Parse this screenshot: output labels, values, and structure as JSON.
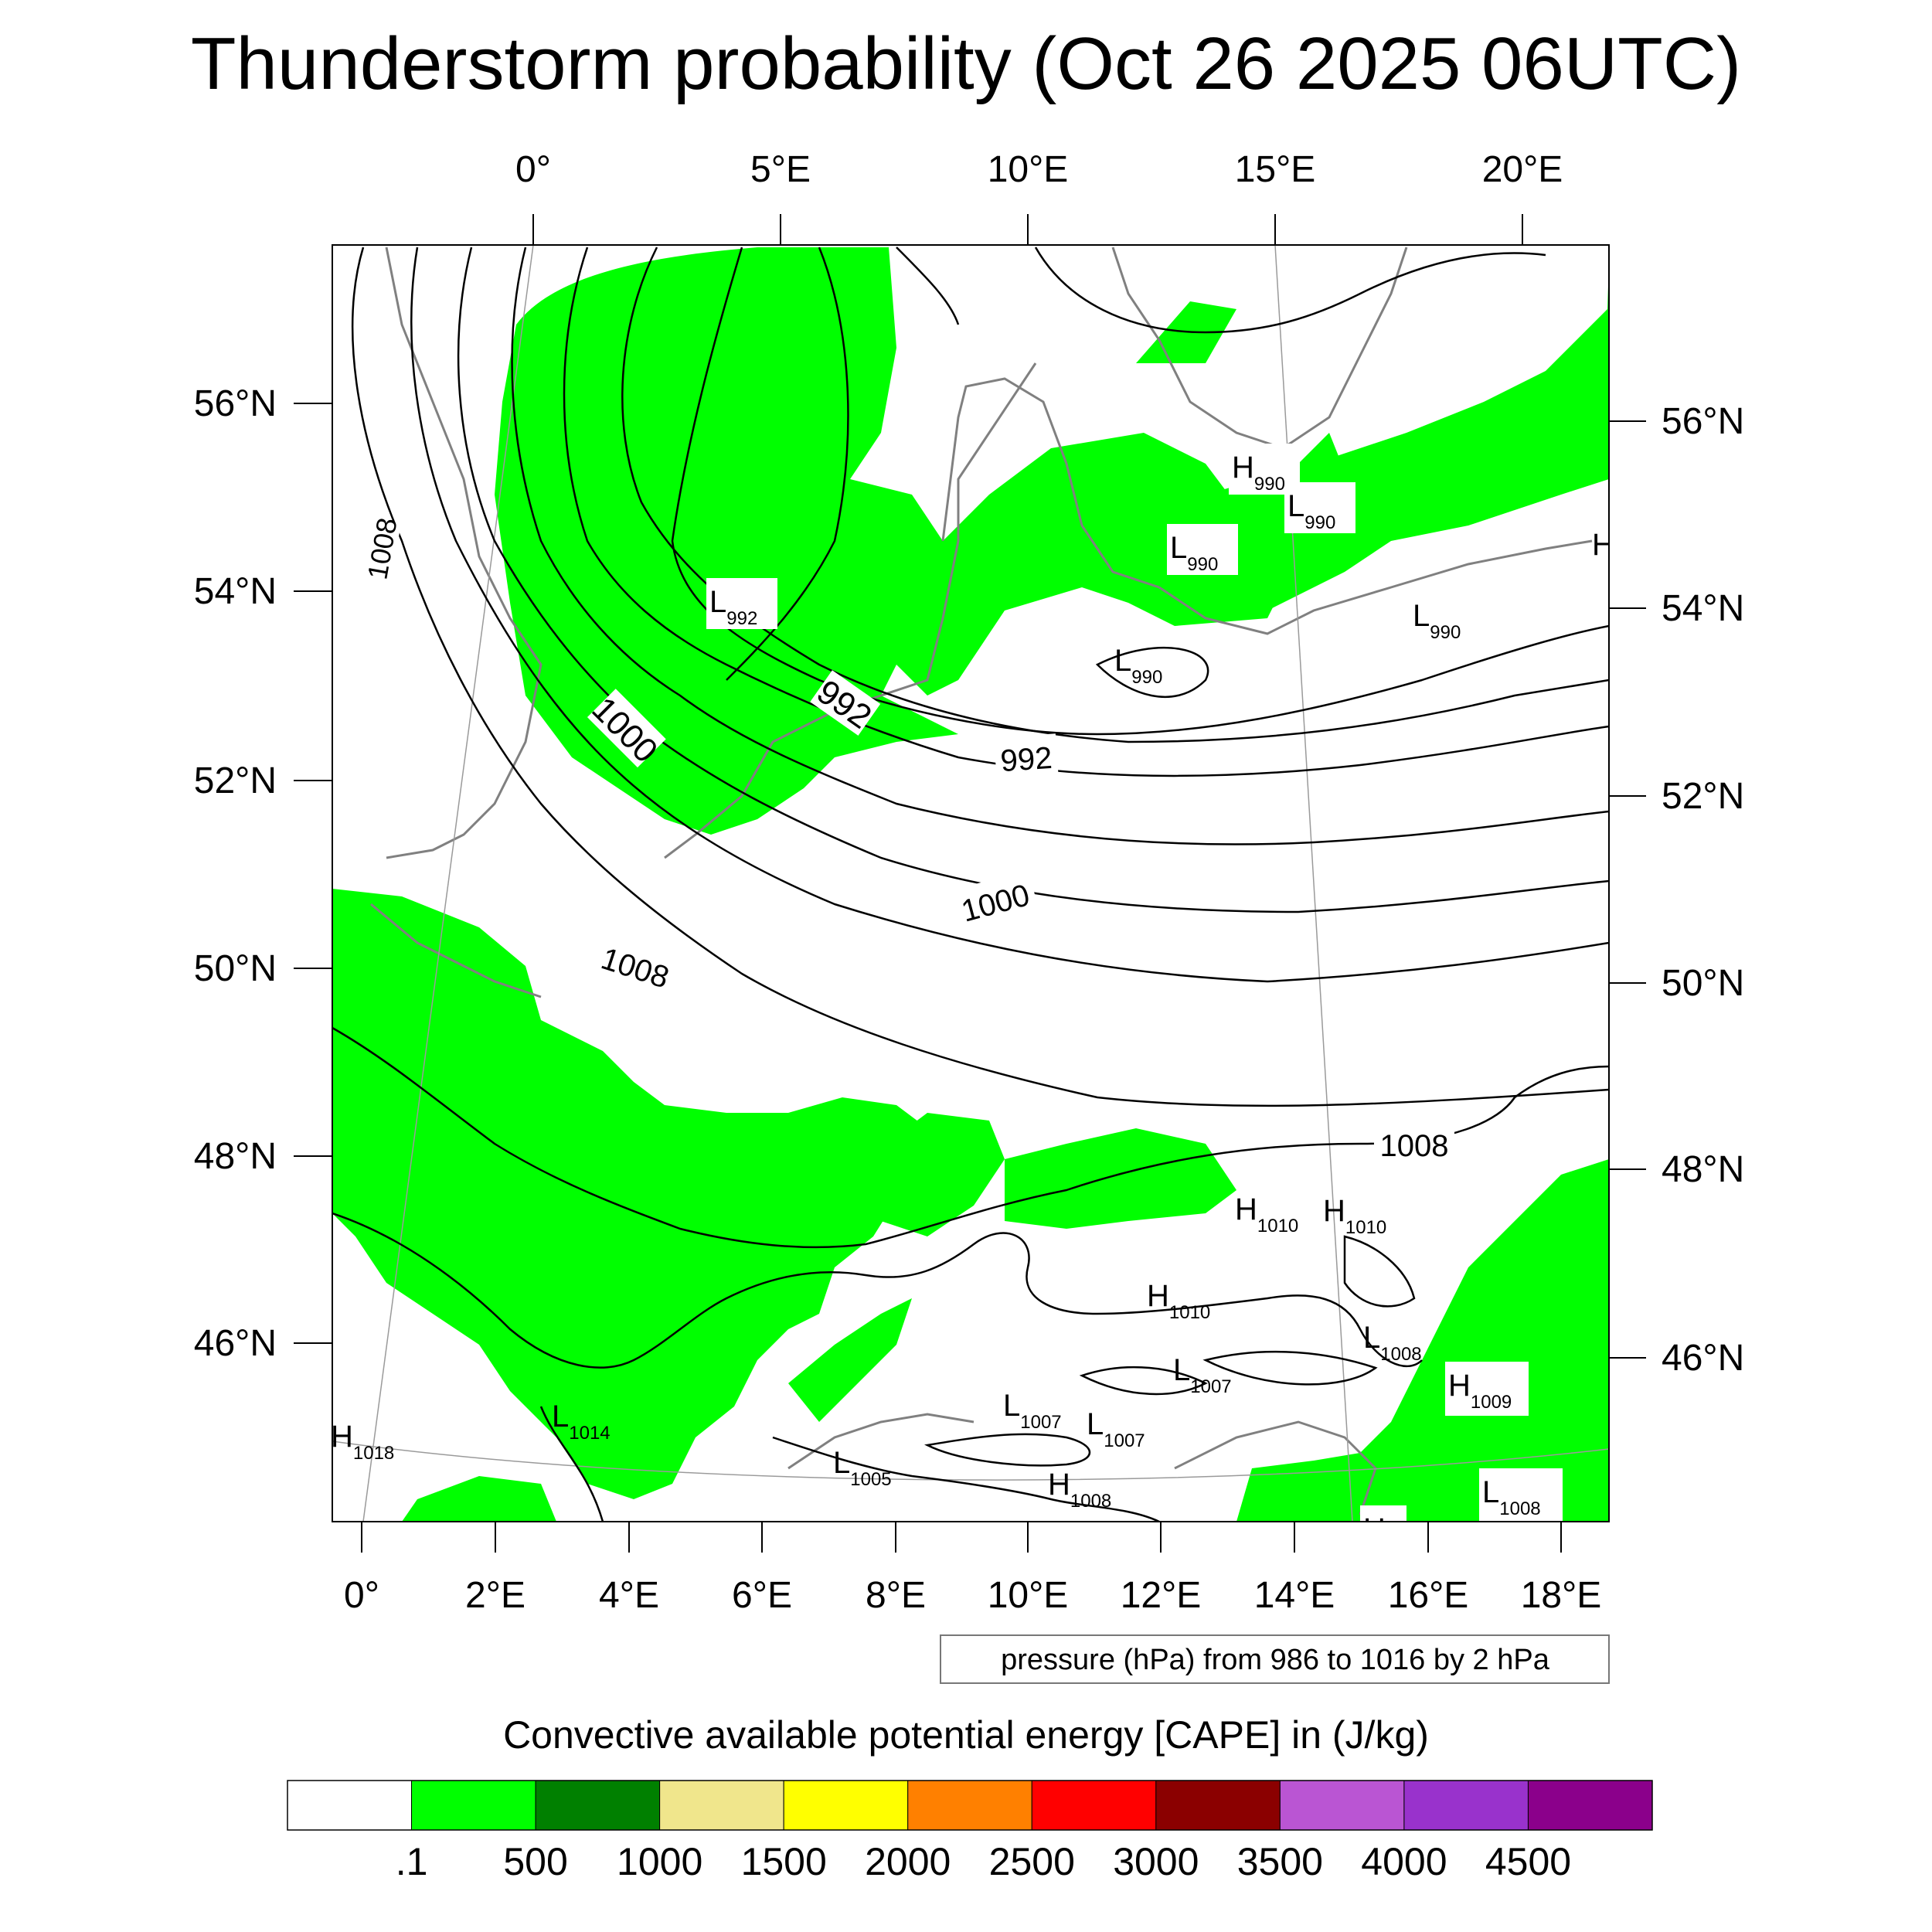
{
  "title": "Thunderstorm probability (Oct 26 2025 06UTC)",
  "top_lon_labels": [
    "0°",
    "5°E",
    "10°E",
    "15°E",
    "20°E"
  ],
  "bottom_lon_labels": [
    "0°",
    "2°E",
    "4°E",
    "6°E",
    "8°E",
    "10°E",
    "12°E",
    "14°E",
    "16°E",
    "18°E"
  ],
  "left_lat_labels": [
    "56°N",
    "54°N",
    "52°N",
    "50°N",
    "48°N",
    "46°N"
  ],
  "right_lat_labels": [
    "56°N",
    "54°N",
    "52°N",
    "50°N",
    "48°N",
    "46°N"
  ],
  "isobar_labels": [
    "1008",
    "1000",
    "992",
    "992",
    "1000",
    "1008",
    "1008"
  ],
  "pressure_centers": [
    {
      "type": "L",
      "value": "992"
    },
    {
      "type": "H",
      "value": "990"
    },
    {
      "type": "L",
      "value": "990"
    },
    {
      "type": "L",
      "value": "990"
    },
    {
      "type": "L",
      "value": "990"
    },
    {
      "type": "L",
      "value": "990"
    },
    {
      "type": "H",
      "value": ""
    },
    {
      "type": "H",
      "value": "1010"
    },
    {
      "type": "H",
      "value": "1010"
    },
    {
      "type": "H",
      "value": "1010"
    },
    {
      "type": "L",
      "value": "1008"
    },
    {
      "type": "H",
      "value": "1009"
    },
    {
      "type": "L",
      "value": "1007"
    },
    {
      "type": "L",
      "value": "1007"
    },
    {
      "type": "L",
      "value": "1007"
    },
    {
      "type": "L",
      "value": "1014"
    },
    {
      "type": "H",
      "value": "1018"
    },
    {
      "type": "L",
      "value": "1005"
    },
    {
      "type": "H",
      "value": "1008"
    },
    {
      "type": "L",
      "value": "1008"
    },
    {
      "type": "H",
      "value": ""
    }
  ],
  "pressure_note": "pressure (hPa) from 986 to 1016 by 2 hPa",
  "colorbar": {
    "title": "Convective available potential energy [CAPE] in (J/kg)",
    "colors": [
      "#ffffff",
      "#00ff00",
      "#008000",
      "#f0e68c",
      "#ffff00",
      "#ff8000",
      "#ff0000",
      "#8b0000",
      "#ba55d3",
      "#9932cc",
      "#8b008b"
    ],
    "tick_labels": [
      ".1",
      "500",
      "1000",
      "1500",
      "2000",
      "2500",
      "3000",
      "3500",
      "4000",
      "4500"
    ]
  }
}
